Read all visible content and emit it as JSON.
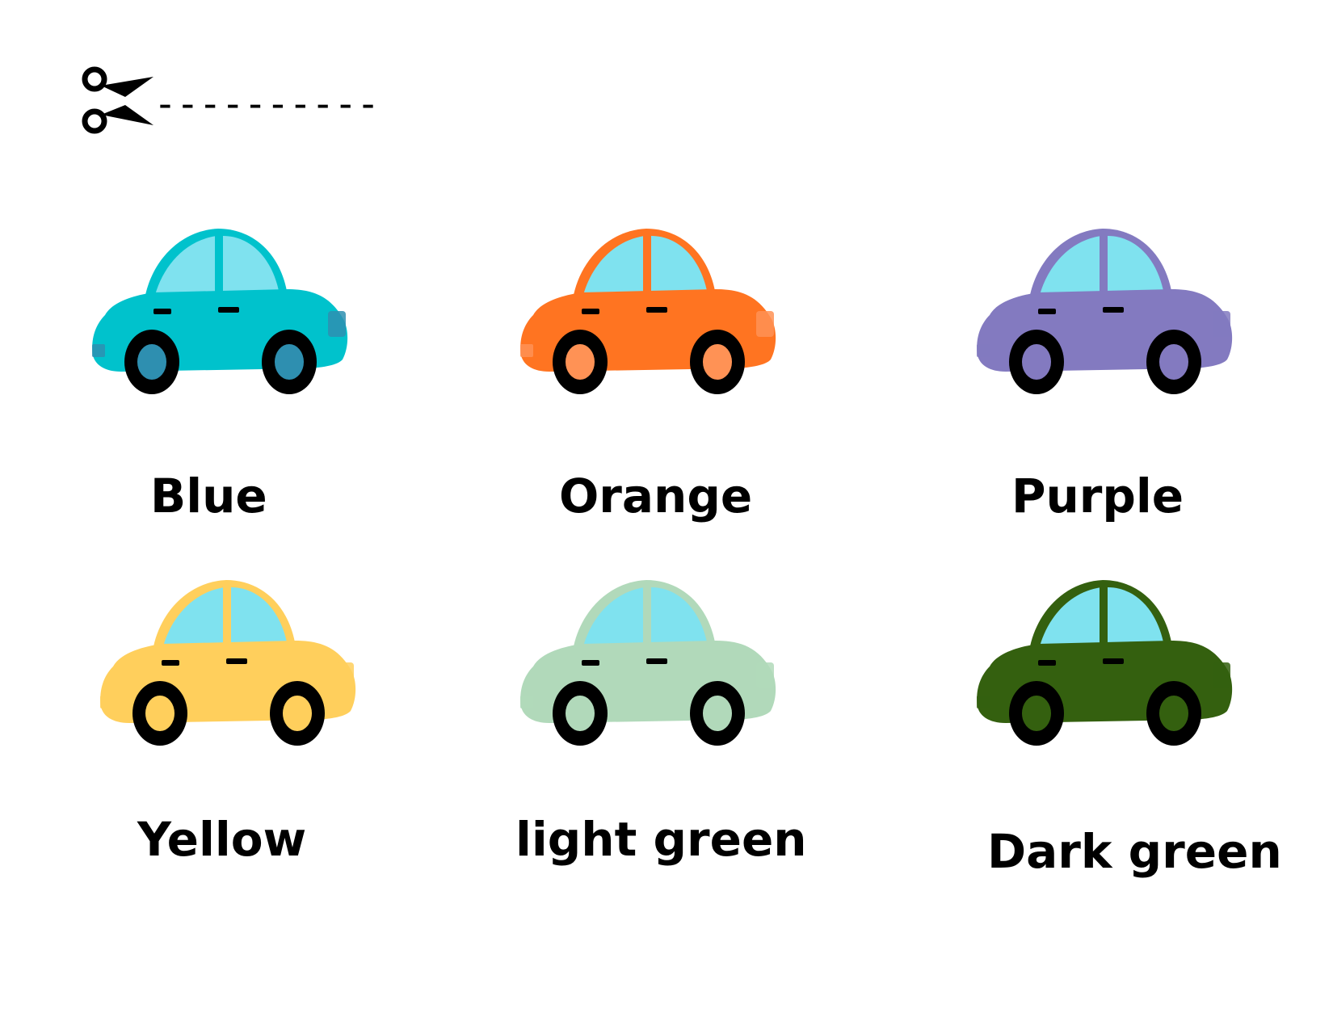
{
  "cut_guide": {
    "icon": "scissors-icon",
    "dashes": "----------"
  },
  "cars": [
    {
      "label": "Blue",
      "body": "#00C2CC",
      "window": "#7FE2EF",
      "wheel_hub": "#2E8FB0",
      "light": "#2E8FB0"
    },
    {
      "label": "Orange",
      "body": "#FF7421",
      "window": "#7FE2EF",
      "wheel_hub": "#FF9255",
      "light": "#FF9255"
    },
    {
      "label": "Purple",
      "body": "#837AC0",
      "window": "#7FE2EF",
      "wheel_hub": "#837AC0",
      "light": "#837AC0"
    },
    {
      "label": "Yellow",
      "body": "#FFCF5C",
      "window": "#7FE2EF",
      "wheel_hub": "#FFCF5C",
      "light": "#FFCF5C"
    },
    {
      "label": "light green",
      "body": "#B1D9BA",
      "window": "#7FE2EF",
      "wheel_hub": "#B1D9BA",
      "light": "#B1D9BA"
    },
    {
      "label": "Dark green",
      "body": "#34600F",
      "window": "#7FE2EF",
      "wheel_hub": "#34600F",
      "light": "#34600F"
    }
  ]
}
